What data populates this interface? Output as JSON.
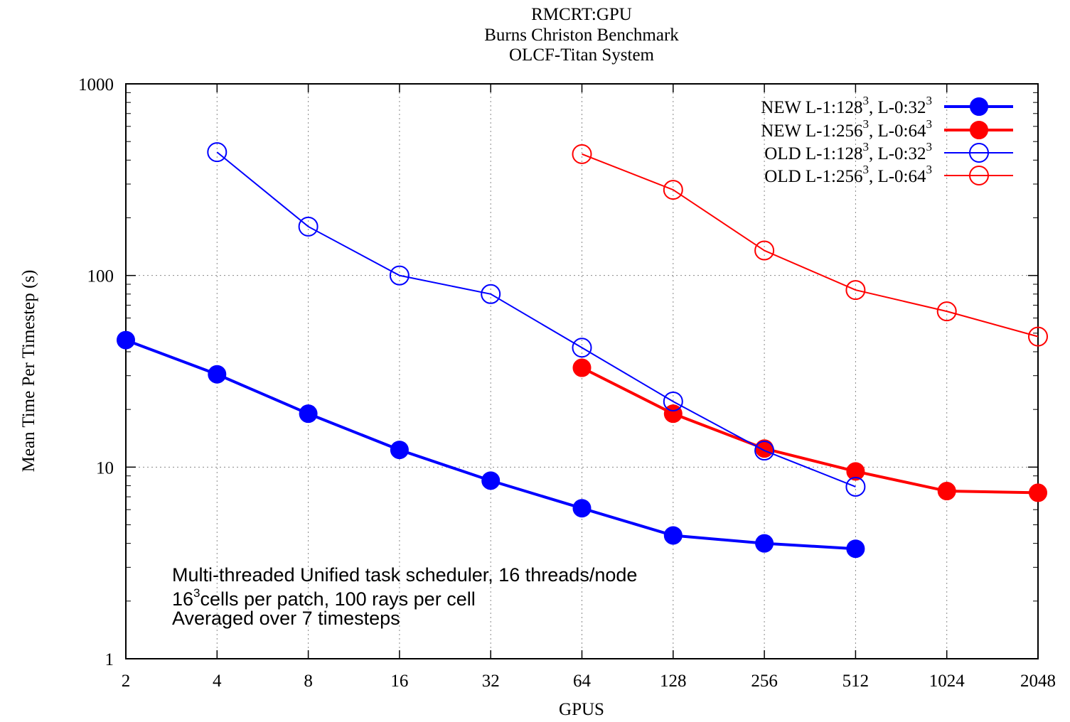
{
  "chart_data": {
    "type": "line",
    "title_lines": [
      "RMCRT:GPU",
      "Burns  Christon Benchmark",
      "OLCF-Titan System"
    ],
    "xlabel": "GPUS",
    "ylabel": "Mean Time Per Timestep (s)",
    "x_scale": "log2",
    "y_scale": "log10",
    "xlim": [
      2,
      2048
    ],
    "ylim": [
      1,
      1000
    ],
    "x_ticks": [
      "2",
      "4",
      "8",
      "16",
      "32",
      "64",
      "128",
      "256",
      "512",
      "1024",
      "2048"
    ],
    "y_ticks": [
      "1",
      "10",
      "100",
      "1000"
    ],
    "grid": true,
    "legend_position": "top-right",
    "series": [
      {
        "name": "NEW  L-1:128³, L-0:32³",
        "legend_prefix": "NEW  L-1:128",
        "legend_mid": ", L-0:32",
        "legend_sup": "3",
        "color": "#0000ff",
        "marker": "filled",
        "x": [
          2,
          4,
          8,
          16,
          32,
          64,
          128,
          256,
          512
        ],
        "y": [
          46,
          30.5,
          19,
          12.3,
          8.5,
          6.1,
          4.4,
          4.0,
          3.75
        ]
      },
      {
        "name": "NEW  L-1:256³, L-0:64³",
        "legend_prefix": "NEW  L-1:256",
        "legend_mid": ", L-0:64",
        "legend_sup": "3",
        "color": "#ff0000",
        "marker": "filled",
        "x": [
          64,
          128,
          256,
          512,
          1024,
          2048
        ],
        "y": [
          33,
          19,
          12.5,
          9.5,
          7.5,
          7.35
        ]
      },
      {
        "name": "OLD  L-1:128³, L-0:32³",
        "legend_prefix": "OLD  L-1:128",
        "legend_mid": ", L-0:32",
        "legend_sup": "3",
        "color": "#0000ff",
        "marker": "open",
        "x": [
          4,
          8,
          16,
          32,
          64,
          128,
          256,
          512
        ],
        "y": [
          440,
          180,
          100,
          80,
          42,
          22,
          12.2,
          7.9
        ]
      },
      {
        "name": "OLD  L-1:256³, L-0:64³",
        "legend_prefix": "OLD  L-1:256",
        "legend_mid": ", L-0:64",
        "legend_sup": "3",
        "color": "#ff0000",
        "marker": "open",
        "x": [
          64,
          128,
          256,
          512,
          1024,
          2048
        ],
        "y": [
          430,
          280,
          135,
          84,
          65,
          48
        ]
      }
    ],
    "annotation_lines": [
      "Multi-threaded Unified task scheduler, 16 threads/node",
      "16",
      "3",
      "cells per patch, 100 rays per cell",
      "Averaged over 7 timesteps"
    ]
  }
}
